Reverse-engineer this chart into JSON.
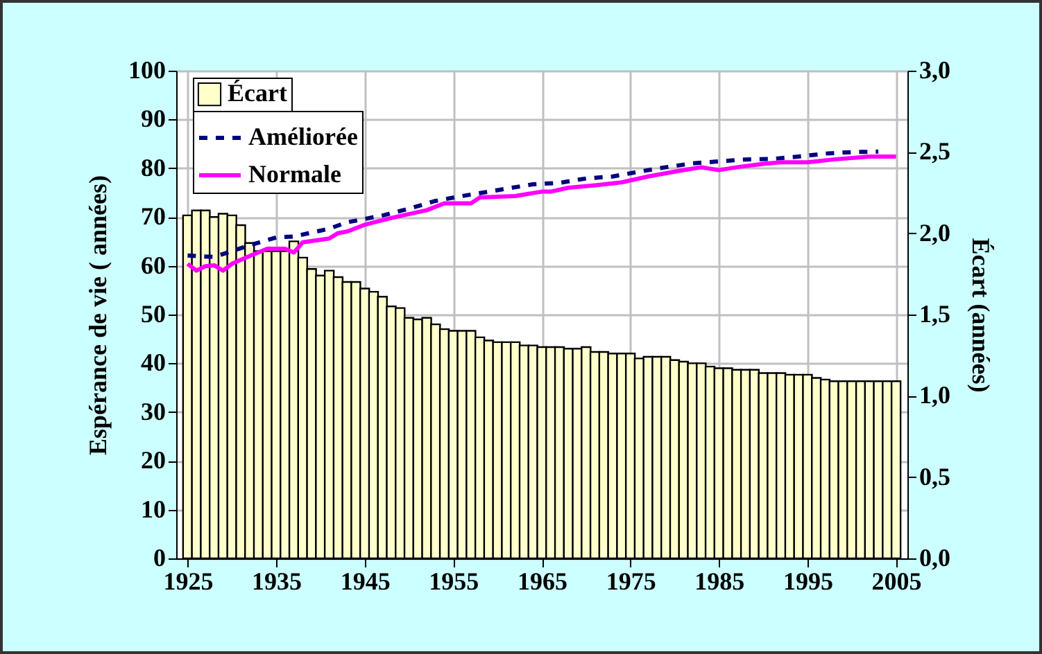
{
  "chart_data": {
    "type": "bar",
    "ylabel": "Espérance de vie ( années)",
    "y2label": "Écart (années)",
    "x": [
      1925,
      1926,
      1927,
      1928,
      1929,
      1930,
      1931,
      1932,
      1933,
      1934,
      1935,
      1936,
      1937,
      1938,
      1939,
      1940,
      1941,
      1942,
      1943,
      1944,
      1945,
      1946,
      1947,
      1948,
      1949,
      1950,
      1951,
      1952,
      1953,
      1954,
      1955,
      1956,
      1957,
      1958,
      1959,
      1960,
      1961,
      1962,
      1963,
      1964,
      1965,
      1966,
      1967,
      1968,
      1969,
      1970,
      1971,
      1972,
      1973,
      1974,
      1975,
      1976,
      1977,
      1978,
      1979,
      1980,
      1981,
      1982,
      1983,
      1984,
      1985,
      1986,
      1987,
      1988,
      1989,
      1990,
      1991,
      1992,
      1993,
      1994,
      1995,
      1996,
      1997,
      1998,
      1999,
      2000,
      2001,
      2002,
      2003,
      2004,
      2005
    ],
    "xlim": [
      1924.5,
      2005.5
    ],
    "xticks": [
      1925,
      1935,
      1945,
      1955,
      1965,
      1975,
      1985,
      1995,
      2005
    ],
    "ylim": [
      0,
      100
    ],
    "yticks": [
      0,
      10,
      20,
      30,
      40,
      50,
      60,
      70,
      80,
      90,
      100
    ],
    "y2lim": [
      0,
      3
    ],
    "y2ticks": [
      {
        "value": 0,
        "label": "0,0"
      },
      {
        "value": 0.5,
        "label": "0,5"
      },
      {
        "value": 1,
        "label": "1,0"
      },
      {
        "value": 1.5,
        "label": "1,5"
      },
      {
        "value": 2,
        "label": "2,0"
      },
      {
        "value": 2.5,
        "label": "2,5"
      },
      {
        "value": 3,
        "label": "3,0"
      }
    ],
    "grid": true,
    "legend": "top left",
    "series": [
      {
        "name": "Écart",
        "type": "bar",
        "axis": "y2",
        "color": "#ffffcc",
        "values": [
          2.11,
          2.14,
          2.14,
          2.1,
          2.12,
          2.11,
          2.05,
          1.94,
          1.89,
          1.89,
          1.89,
          1.89,
          1.95,
          1.85,
          1.78,
          1.74,
          1.77,
          1.73,
          1.7,
          1.7,
          1.66,
          1.64,
          1.61,
          1.55,
          1.54,
          1.48,
          1.47,
          1.48,
          1.44,
          1.41,
          1.4,
          1.4,
          1.4,
          1.36,
          1.34,
          1.33,
          1.33,
          1.33,
          1.31,
          1.31,
          1.3,
          1.3,
          1.3,
          1.29,
          1.29,
          1.3,
          1.27,
          1.27,
          1.26,
          1.26,
          1.26,
          1.23,
          1.24,
          1.24,
          1.24,
          1.22,
          1.21,
          1.2,
          1.2,
          1.18,
          1.17,
          1.17,
          1.16,
          1.16,
          1.16,
          1.14,
          1.14,
          1.14,
          1.13,
          1.13,
          1.13,
          1.11,
          1.1,
          1.09,
          1.09,
          1.09,
          1.09,
          1.09,
          1.09,
          1.09,
          1.09
        ]
      },
      {
        "name": "Améliorée",
        "type": "line",
        "line_style": "dashed",
        "color": "#000080",
        "x": [
          1925,
          1928,
          1932,
          1935,
          1937,
          1941,
          1943,
          1947,
          1950,
          1953,
          1956,
          1960,
          1964,
          1967,
          1970,
          1973,
          1976,
          1979,
          1982,
          1985,
          1988,
          1991,
          1994,
          1997,
          2000,
          2003
        ],
        "values": [
          62.1,
          61.8,
          64.2,
          65.8,
          66.0,
          67.6,
          68.9,
          70.3,
          71.7,
          73.3,
          74.3,
          75.5,
          76.7,
          77.0,
          77.9,
          78.3,
          79.3,
          80.2,
          81.0,
          81.4,
          81.8,
          81.9,
          82.4,
          83.0,
          83.3,
          83.4
        ]
      },
      {
        "name": "Normale",
        "type": "line",
        "line_style": "solid",
        "color": "#ff00ff",
        "x": [
          1925,
          1926,
          1927,
          1928,
          1929,
          1930,
          1932,
          1934,
          1936,
          1937,
          1938,
          1941,
          1942,
          1943,
          1945,
          1948,
          1952,
          1954,
          1957,
          1958,
          1962,
          1965,
          1966,
          1968,
          1971,
          1974,
          1977,
          1980,
          1983,
          1985,
          1987,
          1990,
          1992,
          1995,
          1998,
          2002,
          2005
        ],
        "values": [
          60.4,
          59.0,
          59.9,
          60.1,
          59.0,
          60.4,
          62.0,
          63.5,
          63.5,
          62.7,
          64.8,
          65.6,
          66.7,
          67.0,
          68.4,
          69.8,
          71.4,
          72.8,
          72.8,
          74.0,
          74.3,
          75.2,
          75.2,
          76.0,
          76.5,
          77.1,
          78.3,
          79.3,
          80.2,
          79.6,
          80.2,
          80.9,
          81.2,
          81.2,
          81.8,
          82.4,
          82.4
        ]
      }
    ]
  }
}
